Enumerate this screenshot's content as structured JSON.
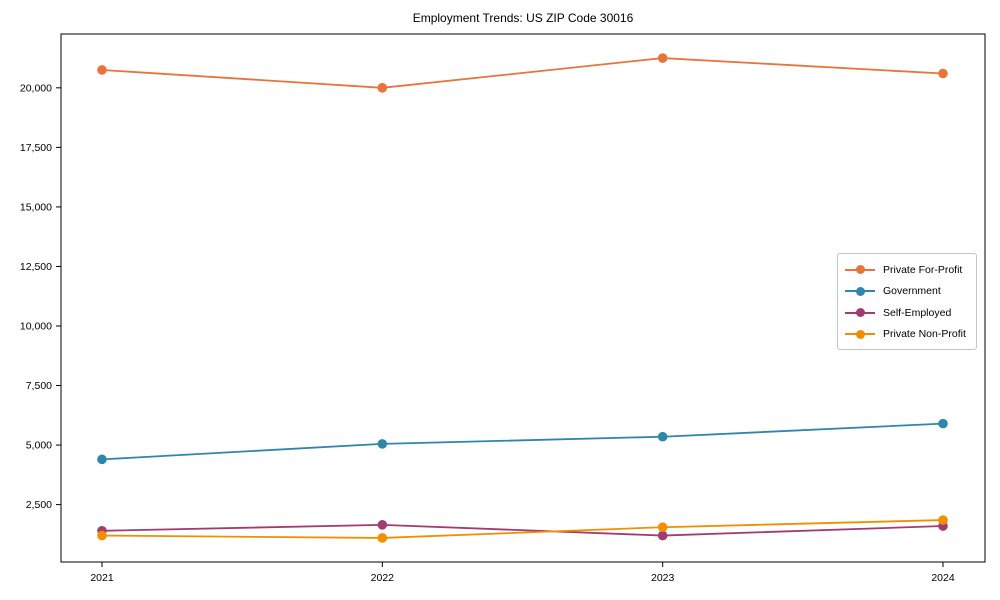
{
  "chart_data": {
    "type": "line",
    "title": "Employment Trends: US ZIP Code 30016",
    "categories": [
      "2021",
      "2022",
      "2023",
      "2024"
    ],
    "series": [
      {
        "name": "Private For-Profit",
        "color": "#E8743B",
        "values": [
          20750,
          20000,
          21250,
          20600
        ]
      },
      {
        "name": "Government",
        "color": "#2E86AB",
        "values": [
          4400,
          5050,
          5350,
          5900
        ]
      },
      {
        "name": "Self-Employed",
        "color": "#A23B72",
        "values": [
          1400,
          1650,
          1200,
          1600
        ]
      },
      {
        "name": "Private Non-Profit",
        "color": "#F18F01",
        "values": [
          1200,
          1100,
          1550,
          1850
        ]
      }
    ],
    "xlabel": "",
    "ylabel": "",
    "ylim": [
      90,
      22260
    ],
    "yticks": [
      2500,
      5000,
      7500,
      10000,
      12500,
      15000,
      17500,
      20000
    ],
    "grid": false,
    "legend_position": "center right",
    "axis_color": "#000000",
    "background": "#ffffff"
  }
}
